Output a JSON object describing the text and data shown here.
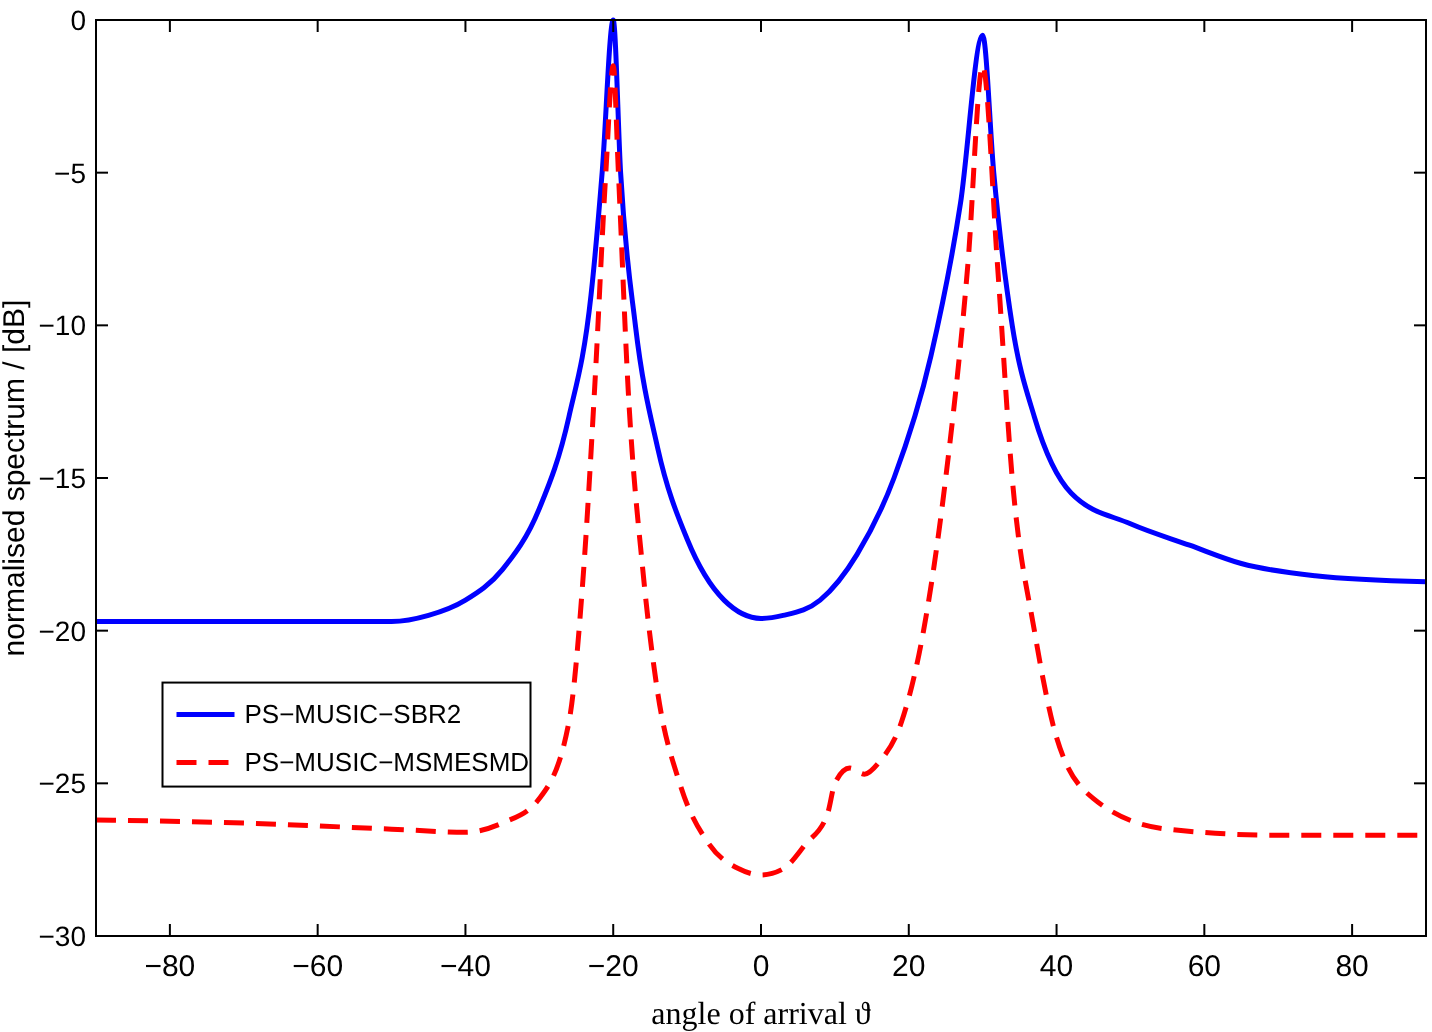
{
  "chart_data": {
    "type": "line",
    "xlabel": "angle of arrival ϑ",
    "ylabel": "normalised spectrum / [dB]",
    "xlim": [
      -90,
      90
    ],
    "ylim": [
      -30,
      0
    ],
    "xticks": [
      -80,
      -60,
      -40,
      -20,
      0,
      20,
      40,
      60,
      80
    ],
    "yticks": [
      -30,
      -25,
      -20,
      -15,
      -10,
      -5,
      0
    ],
    "grid": false,
    "legend": "bottom left",
    "series": [
      {
        "name": "PS−MUSIC−SBR2",
        "color": "#0000ff",
        "line_style": "solid",
        "x": [
          -90,
          -70,
          -50,
          -45,
          -40,
          -35,
          -30,
          -26,
          -23,
          -21.5,
          -20,
          -19,
          -17,
          -14,
          -10,
          -5,
          0,
          3,
          8,
          13,
          18,
          23,
          27,
          30,
          31.5,
          34,
          37,
          42,
          50,
          58,
          65,
          75,
          90
        ],
        "values": [
          -19.7,
          -19.7,
          -19.7,
          -19.5,
          -19,
          -18,
          -16,
          -13,
          -9,
          -5,
          0,
          -5,
          -10,
          -14,
          -17,
          -19,
          -19.6,
          -19.5,
          -19,
          -17.5,
          -15,
          -11,
          -6,
          -0.5,
          -5,
          -10,
          -13,
          -15.5,
          -16.5,
          -17.2,
          -17.8,
          -18.2,
          -18.4
        ]
      },
      {
        "name": "PS−MUSIC−MSMESMD",
        "color": "#ff0000",
        "line_style": "dashed",
        "x": [
          -90,
          -70,
          -50,
          -40,
          -35,
          -30,
          -26,
          -24,
          -22.5,
          -21,
          -20,
          -19.3,
          -18,
          -16,
          -14,
          -11,
          -7,
          -3,
          0,
          3,
          6,
          9,
          10,
          12,
          14,
          16,
          19,
          22,
          25,
          28,
          30,
          32,
          34,
          37,
          40,
          45,
          55,
          70,
          90
        ],
        "values": [
          -26.2,
          -26.3,
          -26.5,
          -26.6,
          -26.3,
          -25.5,
          -23,
          -18,
          -12,
          -5,
          -1.5,
          -5,
          -12,
          -18,
          -22,
          -25,
          -27,
          -27.8,
          -28,
          -27.8,
          -27,
          -26,
          -25,
          -24.5,
          -24.7,
          -24.3,
          -23,
          -20,
          -15,
          -8,
          -1.5,
          -8,
          -15,
          -20,
          -23.5,
          -25.5,
          -26.5,
          -26.7,
          -26.7
        ]
      }
    ]
  }
}
